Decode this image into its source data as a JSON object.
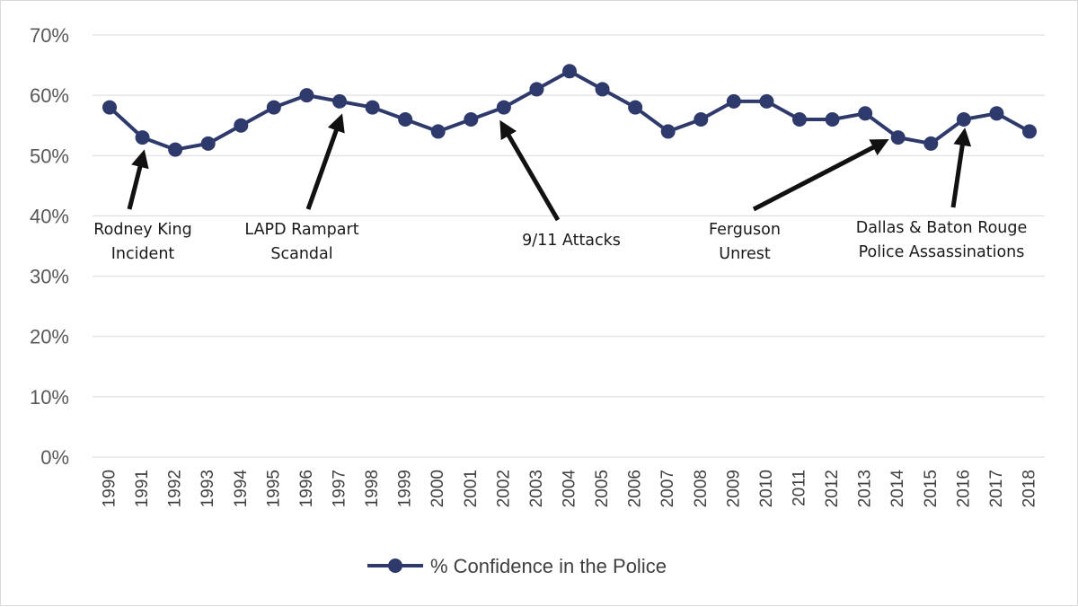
{
  "chart_data": {
    "type": "line",
    "title": "",
    "xlabel": "",
    "ylabel": "",
    "ylim": [
      0,
      70
    ],
    "ytick_labels": [
      "0%",
      "10%",
      "20%",
      "30%",
      "40%",
      "50%",
      "60%",
      "70%"
    ],
    "grid": "horizontal",
    "legend_position": "bottom-center",
    "x": [
      "1990",
      "1991",
      "1992",
      "1993",
      "1994",
      "1995",
      "1996",
      "1997",
      "1998",
      "1999",
      "2000",
      "2001",
      "2002",
      "2003",
      "2004",
      "2005",
      "2006",
      "2007",
      "2008",
      "2009",
      "2010",
      "2011",
      "2012",
      "2013",
      "2014",
      "2015",
      "2016",
      "2017",
      "2018"
    ],
    "series": [
      {
        "name": "% Confidence in the Police",
        "color": "#2e3a6b",
        "values": [
          58,
          53,
          51,
          52,
          55,
          58,
          60,
          59,
          58,
          56,
          54,
          56,
          58,
          61,
          64,
          61,
          58,
          54,
          56,
          59,
          59,
          56,
          56,
          57,
          53,
          52,
          56,
          57,
          54
        ]
      }
    ],
    "annotations": [
      {
        "lines": [
          "Rodney King",
          "Incident"
        ],
        "target_year": "1991"
      },
      {
        "lines": [
          "LAPD Rampart",
          "Scandal"
        ],
        "target_year": "1997"
      },
      {
        "lines": [
          "9/11 Attacks"
        ],
        "target_year": "2002"
      },
      {
        "lines": [
          "Ferguson",
          "Unrest"
        ],
        "target_year": "2014"
      },
      {
        "lines": [
          "Dallas & Baton Rouge",
          "Police Assassinations"
        ],
        "target_year": "2016"
      }
    ]
  }
}
